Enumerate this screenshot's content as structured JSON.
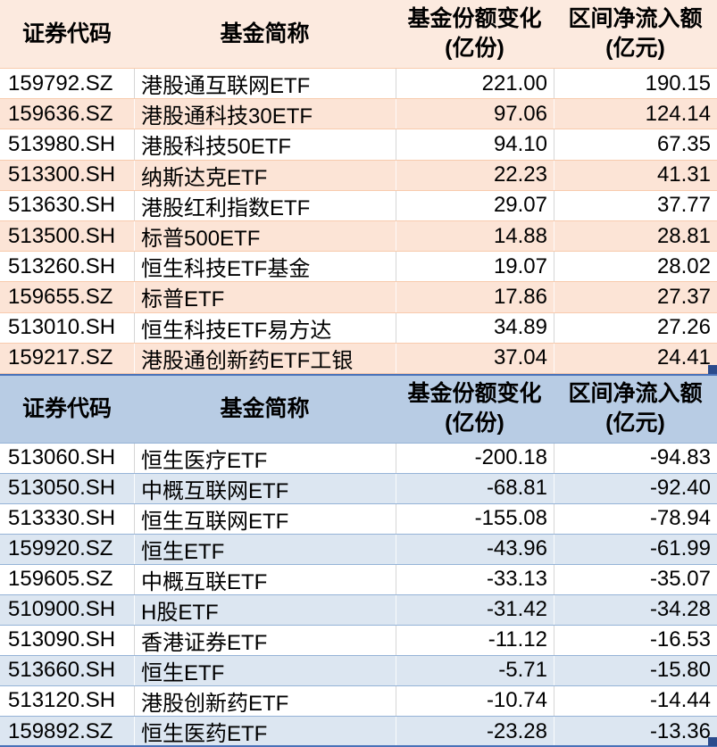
{
  "tables": {
    "inflow": {
      "headers": {
        "code": "证券代码",
        "name": "基金简称",
        "change_l1": "基金份额变化",
        "change_l2": "(亿份)",
        "inflow_l1": "区间净流入额",
        "inflow_l2": "(亿元)"
      },
      "rows": [
        {
          "code": "159792.SZ",
          "name": "港股通互联网ETF",
          "change": "221.00",
          "inflow": "190.15"
        },
        {
          "code": "159636.SZ",
          "name": "港股通科技30ETF",
          "change": "97.06",
          "inflow": "124.14"
        },
        {
          "code": "513980.SH",
          "name": "港股科技50ETF",
          "change": "94.10",
          "inflow": "67.35"
        },
        {
          "code": "513300.SH",
          "name": "纳斯达克ETF",
          "change": "22.23",
          "inflow": "41.31"
        },
        {
          "code": "513630.SH",
          "name": "港股红利指数ETF",
          "change": "29.07",
          "inflow": "37.77"
        },
        {
          "code": "513500.SH",
          "name": "标普500ETF",
          "change": "14.88",
          "inflow": "28.81"
        },
        {
          "code": "513260.SH",
          "name": "恒生科技ETF基金",
          "change": "19.07",
          "inflow": "28.02"
        },
        {
          "code": "159655.SZ",
          "name": "标普ETF",
          "change": "17.86",
          "inflow": "27.37"
        },
        {
          "code": "513010.SH",
          "name": "恒生科技ETF易方达",
          "change": "34.89",
          "inflow": "27.26"
        },
        {
          "code": "159217.SZ",
          "name": "港股通创新药ETF工银",
          "change": "37.04",
          "inflow": "24.41"
        }
      ]
    },
    "outflow": {
      "headers": {
        "code": "证券代码",
        "name": "基金简称",
        "change_l1": "基金份额变化",
        "change_l2": "(亿份)",
        "inflow_l1": "区间净流入额",
        "inflow_l2": "(亿元)"
      },
      "rows": [
        {
          "code": "513060.SH",
          "name": "恒生医疗ETF",
          "change": "-200.18",
          "inflow": "-94.83"
        },
        {
          "code": "513050.SH",
          "name": "中概互联网ETF",
          "change": "-68.81",
          "inflow": "-92.40"
        },
        {
          "code": "513330.SH",
          "name": "恒生互联网ETF",
          "change": "-155.08",
          "inflow": "-78.94"
        },
        {
          "code": "159920.SZ",
          "name": "恒生ETF",
          "change": "-43.96",
          "inflow": "-61.99"
        },
        {
          "code": "159605.SZ",
          "name": "中概互联ETF",
          "change": "-33.13",
          "inflow": "-35.07"
        },
        {
          "code": "510900.SH",
          "name": "H股ETF",
          "change": "-31.42",
          "inflow": "-34.28"
        },
        {
          "code": "513090.SH",
          "name": "香港证券ETF",
          "change": "-11.12",
          "inflow": "-16.53"
        },
        {
          "code": "513660.SH",
          "name": "恒生ETF",
          "change": "-5.71",
          "inflow": "-15.80"
        },
        {
          "code": "513120.SH",
          "name": "港股创新药ETF",
          "change": "-10.74",
          "inflow": "-14.44"
        },
        {
          "code": "159892.SZ",
          "name": "恒生医药ETF",
          "change": "-23.28",
          "inflow": "-13.36"
        }
      ]
    }
  },
  "colors": {
    "inflow_header_bg": "#FCEADF",
    "inflow_band_bg": "#FCE4D6",
    "inflow_rule": "#F8CBAD",
    "outflow_header_bg": "#B8CCE4",
    "outflow_band_bg": "#DCE6F1",
    "outflow_rule": "#95B3D7",
    "selection_border": "#4A72B8",
    "selection_handle": "#2B4B8C",
    "gridline_gray": "#D6D6D6",
    "text": "#000000"
  }
}
